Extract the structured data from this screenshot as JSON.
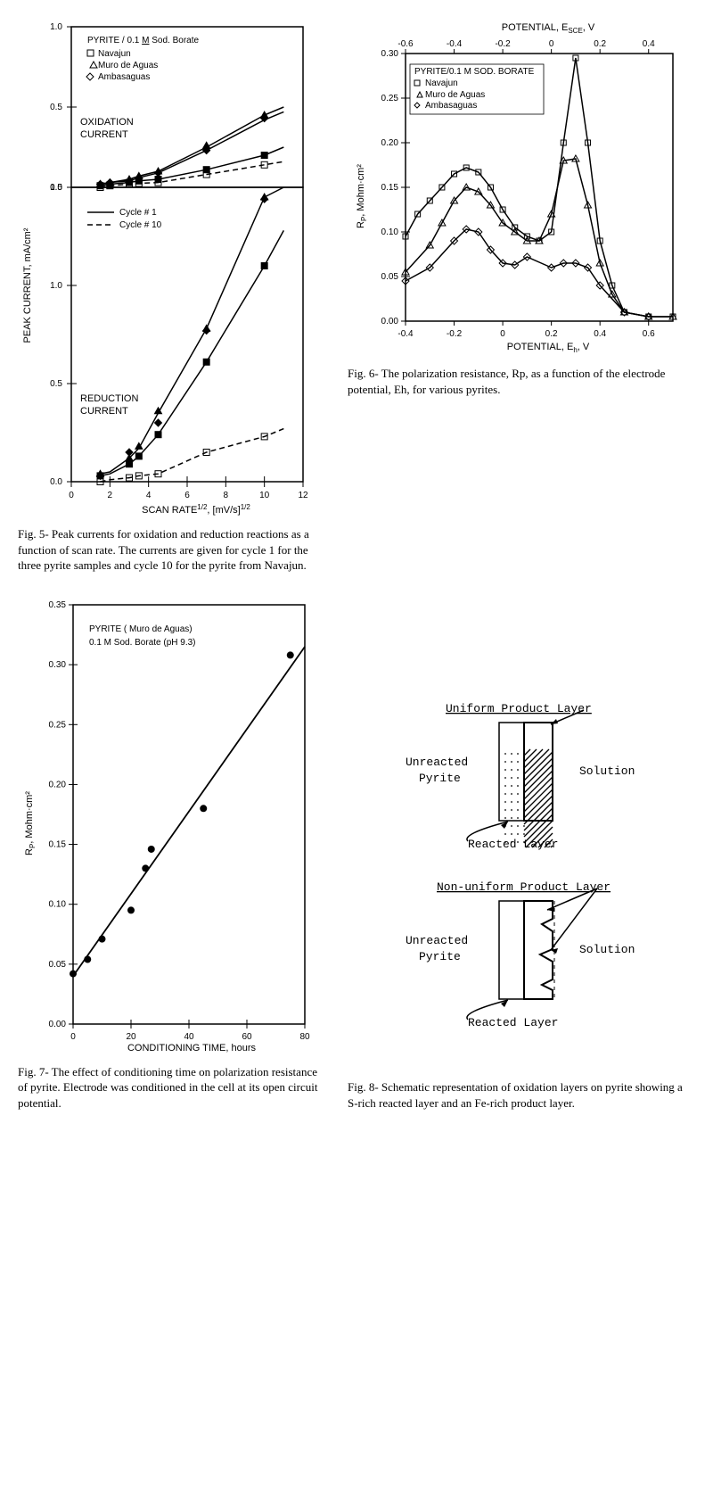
{
  "fig5": {
    "title_line": "PYRITE / 0.1 M Sod. Borate",
    "legend_series": [
      "Navajun",
      "Muro de Aguas",
      "Ambasaguas"
    ],
    "legend_markers": [
      "square",
      "triangle",
      "diamond"
    ],
    "cycle_legend": [
      "Cycle # 1",
      "Cycle # 10"
    ],
    "panel_a_label": "OXIDATION\nCURRENT",
    "panel_b_label": "REDUCTION\nCURRENT",
    "x_label": "SCAN RATE^{1/2},  [mV/s]^{1/2}",
    "y_label": "PEAK CURRENT, mA/cm²",
    "panel_a": {
      "xlim": [
        0,
        12
      ],
      "ylim": [
        0,
        1.0
      ],
      "ytick": [
        0,
        0.5,
        1.0
      ],
      "xticks": [
        0,
        2,
        4,
        6,
        8,
        10,
        12
      ],
      "series_solid1_x": [
        1.5,
        2,
        3,
        3.5,
        4.5,
        7,
        10,
        11
      ],
      "series_solid1_y": [
        0.02,
        0.03,
        0.05,
        0.07,
        0.1,
        0.25,
        0.45,
        0.5
      ],
      "series_solid2_x": [
        1.5,
        2,
        3,
        3.5,
        4.5,
        7,
        10,
        11
      ],
      "series_solid2_y": [
        0.02,
        0.03,
        0.04,
        0.06,
        0.09,
        0.23,
        0.42,
        0.47
      ],
      "series_solid3_x": [
        1.5,
        2,
        3,
        3.5,
        4.5,
        7,
        10,
        11
      ],
      "series_solid3_y": [
        0.01,
        0.02,
        0.03,
        0.04,
        0.05,
        0.11,
        0.2,
        0.25
      ],
      "series_dash_x": [
        1.5,
        2,
        3,
        3.5,
        4.5,
        7,
        10,
        11
      ],
      "series_dash_y": [
        0.0,
        0.01,
        0.02,
        0.025,
        0.03,
        0.08,
        0.14,
        0.16
      ],
      "markers_tri_x": [
        1.5,
        2,
        3,
        3.5,
        4.5,
        7,
        10
      ],
      "markers_tri_y": [
        0.02,
        0.03,
        0.05,
        0.07,
        0.1,
        0.26,
        0.45
      ],
      "markers_dia_x": [
        1.5,
        2,
        3,
        3.5,
        4.5,
        7,
        10
      ],
      "markers_dia_y": [
        0.02,
        0.03,
        0.04,
        0.06,
        0.09,
        0.23,
        0.43
      ],
      "markers_sq_x": [
        1.5,
        2,
        3,
        3.5,
        4.5,
        7,
        10
      ],
      "markers_sq_y": [
        0.01,
        0.015,
        0.03,
        0.04,
        0.05,
        0.11,
        0.2
      ],
      "markers_sqo_x": [
        1.5,
        2,
        3,
        3.5,
        4.5,
        7,
        10
      ],
      "markers_sqo_y": [
        0.0,
        0.01,
        0.02,
        0.025,
        0.03,
        0.08,
        0.14
      ]
    },
    "panel_b": {
      "xlim": [
        0,
        12
      ],
      "ylim": [
        0,
        1.5
      ],
      "ytick": [
        0,
        0.5,
        1.0,
        1.5
      ],
      "xticks": [
        0,
        2,
        4,
        6,
        8,
        10,
        12
      ],
      "series_solid1_x": [
        1.5,
        2,
        3,
        3.5,
        4.5,
        7,
        10,
        11
      ],
      "series_solid1_y": [
        0.04,
        0.05,
        0.12,
        0.17,
        0.35,
        0.78,
        1.45,
        1.5
      ],
      "series_solid2_x": [
        1.5,
        2,
        3,
        3.5,
        4.5,
        7,
        10,
        11
      ],
      "series_solid2_y": [
        0.03,
        0.04,
        0.09,
        0.13,
        0.24,
        0.61,
        1.1,
        1.28
      ],
      "series_dash_x": [
        1.5,
        2,
        3,
        3.5,
        4.5,
        7,
        10,
        11
      ],
      "series_dash_y": [
        0.0,
        0.01,
        0.02,
        0.03,
        0.04,
        0.15,
        0.23,
        0.27
      ],
      "markers_tri_x": [
        1.5,
        3,
        3.5,
        4.5,
        7,
        10
      ],
      "markers_tri_y": [
        0.04,
        0.12,
        0.18,
        0.36,
        0.78,
        1.45
      ],
      "markers_dia_x": [
        1.5,
        3,
        4.5,
        7,
        10
      ],
      "markers_dia_y": [
        0.03,
        0.15,
        0.3,
        0.77,
        1.44
      ],
      "markers_sq_x": [
        1.5,
        3,
        3.5,
        4.5,
        7,
        10
      ],
      "markers_sq_y": [
        0.03,
        0.09,
        0.13,
        0.24,
        0.61,
        1.1
      ],
      "markers_sqo_x": [
        1.5,
        3,
        3.5,
        4.5,
        7,
        10
      ],
      "markers_sqo_y": [
        0.0,
        0.02,
        0.03,
        0.04,
        0.15,
        0.23
      ]
    },
    "caption": "Fig. 5-  Peak currents for oxidation and reduction reactions as a function of scan rate.  The currents are given for cycle 1 for the three pyrite samples and cycle 10 for the pyrite from Navajun."
  },
  "fig6": {
    "top_x_label": "POTENTIAL, E_SCE, V",
    "bot_x_label": "POTENTIAL, E_h, V",
    "y_label": "R_P, Mohm·cm²",
    "legend_title": "PYRITE/0.1 M SOD. BORATE",
    "legend_series": [
      "Navajun",
      "Muro de Aguas",
      "Ambasaguas"
    ],
    "x_bot_lim": [
      -0.4,
      0.7
    ],
    "x_top_lim": [
      -0.6,
      0.5
    ],
    "top_ticks": [
      -0.6,
      -0.4,
      -0.2,
      0,
      0.2,
      0.4
    ],
    "bot_ticks": [
      -0.4,
      -0.2,
      0,
      0.2,
      0.4,
      0.6
    ],
    "ylim": [
      0,
      0.3
    ],
    "yticks": [
      0,
      0.05,
      0.1,
      0.15,
      0.2,
      0.25,
      0.3
    ],
    "navajun_x": [
      -0.4,
      -0.35,
      -0.3,
      -0.25,
      -0.2,
      -0.15,
      -0.1,
      -0.05,
      0.0,
      0.05,
      0.1,
      0.15,
      0.2,
      0.25,
      0.3,
      0.35,
      0.4,
      0.45,
      0.5,
      0.6,
      0.7
    ],
    "navajun_y": [
      0.095,
      0.12,
      0.135,
      0.15,
      0.165,
      0.172,
      0.167,
      0.15,
      0.125,
      0.105,
      0.095,
      0.09,
      0.1,
      0.2,
      0.295,
      0.2,
      0.09,
      0.04,
      0.01,
      0.005,
      0.005
    ],
    "muro_x": [
      -0.4,
      -0.3,
      -0.25,
      -0.2,
      -0.15,
      -0.1,
      -0.05,
      0.0,
      0.05,
      0.1,
      0.15,
      0.2,
      0.25,
      0.3,
      0.35,
      0.4,
      0.45,
      0.5,
      0.6,
      0.7
    ],
    "muro_y": [
      0.055,
      0.085,
      0.11,
      0.135,
      0.15,
      0.145,
      0.13,
      0.11,
      0.1,
      0.09,
      0.09,
      0.12,
      0.18,
      0.182,
      0.13,
      0.065,
      0.03,
      0.01,
      0.005,
      0.005
    ],
    "amba_x": [
      -0.4,
      -0.3,
      -0.2,
      -0.15,
      -0.1,
      -0.05,
      0.0,
      0.05,
      0.1,
      0.2,
      0.25,
      0.3,
      0.35,
      0.4,
      0.5,
      0.6
    ],
    "amba_y": [
      0.045,
      0.06,
      0.09,
      0.103,
      0.1,
      0.08,
      0.065,
      0.063,
      0.072,
      0.06,
      0.065,
      0.065,
      0.06,
      0.04,
      0.01,
      0.005
    ],
    "caption": "Fig. 6-  The polarization resistance, Rp, as a function of the electrode potential, Eh, for various pyrites."
  },
  "fig7": {
    "title_line1": "PYRITE ( Muro de Aguas)",
    "title_line2": "0.1 M Sod. Borate (pH 9.3)",
    "x_label": "CONDITIONING TIME, hours",
    "y_label": "R_P, Mohm·cm²",
    "xlim": [
      0,
      80
    ],
    "ylim": [
      0,
      0.35
    ],
    "xticks": [
      0,
      20,
      40,
      60,
      80
    ],
    "yticks": [
      0,
      0.05,
      0.1,
      0.15,
      0.2,
      0.25,
      0.3,
      0.35
    ],
    "points_x": [
      0,
      5,
      10,
      20,
      25,
      27,
      45,
      75
    ],
    "points_y": [
      0.042,
      0.054,
      0.071,
      0.095,
      0.13,
      0.146,
      0.18,
      0.308
    ],
    "line_x": [
      0,
      80
    ],
    "line_y": [
      0.04,
      0.315
    ],
    "caption": "Fig. 7-  The effect of conditioning time on polarization resistance of pyrite.  Electrode was conditioned in the cell at its open circuit potential."
  },
  "fig8": {
    "title_a": "Uniform Product Layer",
    "title_b": "Non-uniform Product Layer",
    "left_label": "Unreacted\nPyrite",
    "right_label": "Solution",
    "bottom_label": "Reacted Layer",
    "caption": "Fig. 8-  Schematic representation of oxidation layers on pyrite showing a S-rich reacted layer and an Fe-rich product layer."
  },
  "colors": {
    "ink": "#000000",
    "bg": "#ffffff"
  }
}
